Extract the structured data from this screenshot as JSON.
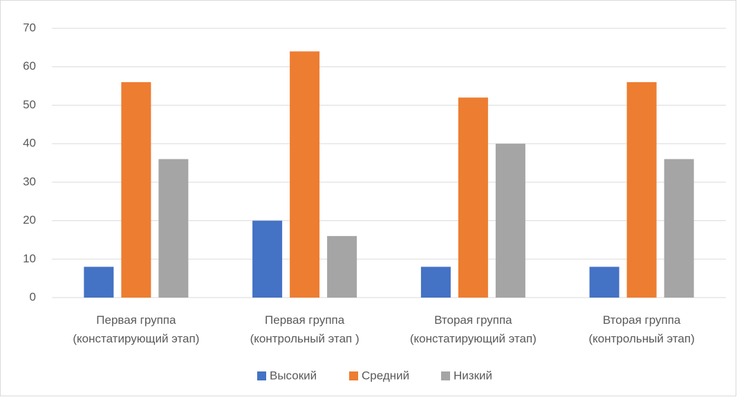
{
  "chart_data": {
    "type": "bar",
    "categories": [
      [
        "Первая группа",
        "(констатирующий этап)"
      ],
      [
        "Первая группа",
        "(контрольный этап )"
      ],
      [
        "Вторая группа",
        "(констатирующий этап)"
      ],
      [
        "Вторая группа",
        "(контрольный этап)"
      ]
    ],
    "series": [
      {
        "name": "Высокий",
        "color": "#4472c4",
        "values": [
          8,
          20,
          8,
          8
        ]
      },
      {
        "name": "Средний",
        "color": "#ed7d31",
        "values": [
          56,
          64,
          52,
          56
        ]
      },
      {
        "name": "Низкий",
        "color": "#a5a5a5",
        "values": [
          36,
          16,
          40,
          36
        ]
      }
    ],
    "ylim": [
      0,
      70
    ],
    "yticks": [
      0,
      10,
      20,
      30,
      40,
      50,
      60,
      70
    ],
    "grid": true,
    "legend": "bottom"
  }
}
